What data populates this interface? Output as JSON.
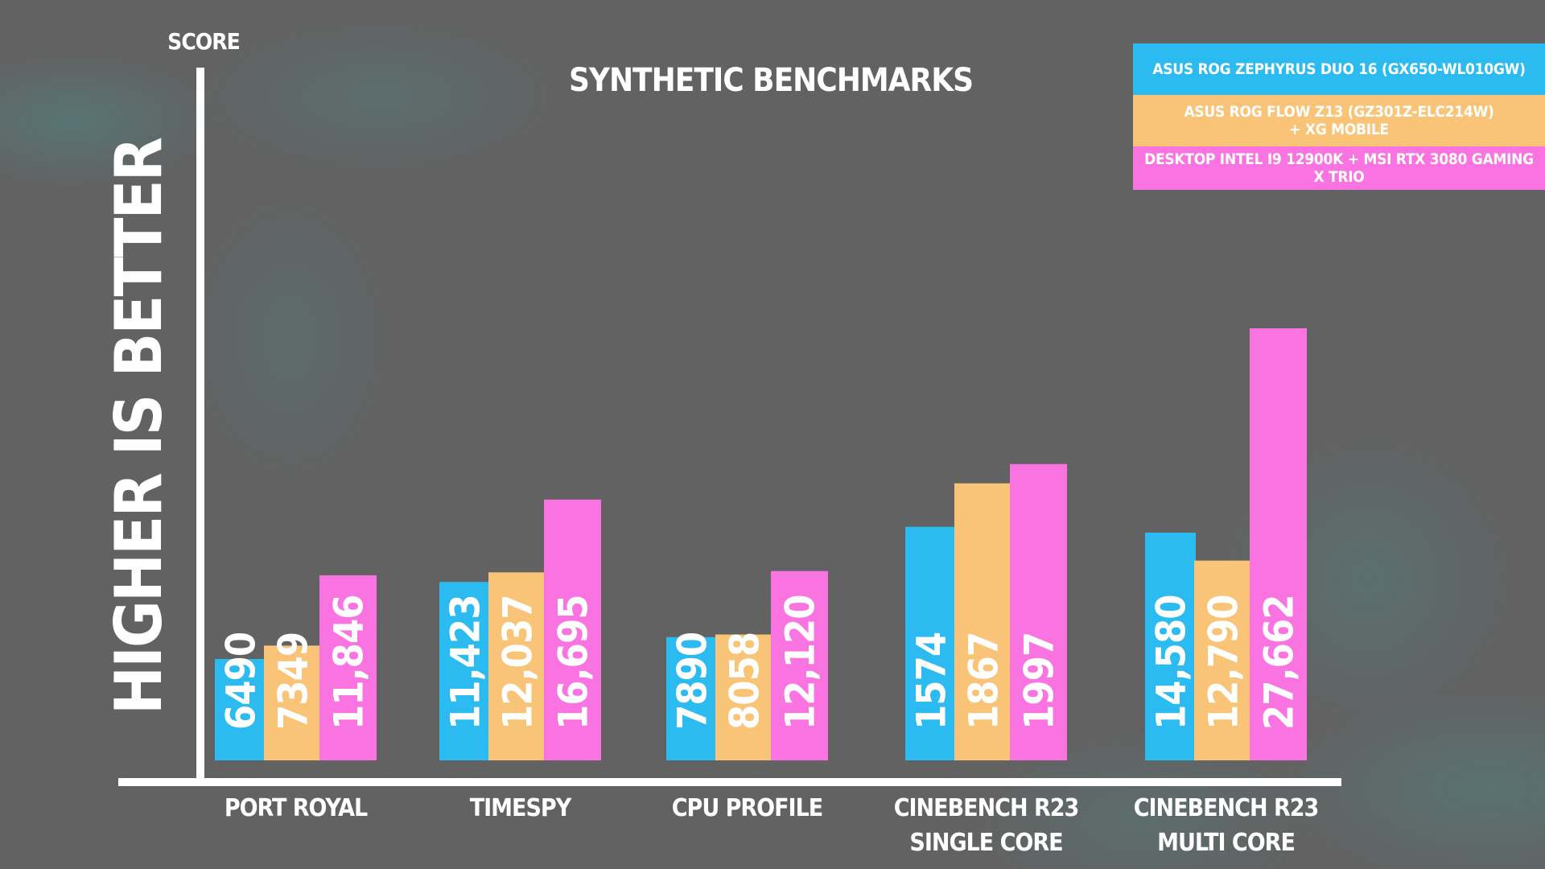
{
  "chart_data": {
    "type": "bar",
    "title": "SYNTHETIC BENCHMARKS",
    "ylabel": "SCORE",
    "side_label": "HIGHER IS BETTER",
    "ylim": [
      0,
      32000
    ],
    "categories": [
      [
        "PORT ROYAL"
      ],
      [
        "TIMESPY"
      ],
      [
        "CPU PROFILE"
      ],
      [
        "CINEBENCH R23",
        "SINGLE CORE"
      ],
      [
        "CINEBENCH R23",
        "MULTI CORE"
      ]
    ],
    "category_scales": [
      1,
      1,
      1,
      9.5,
      1
    ],
    "series": [
      {
        "name": [
          "ASUS ROG ZEPHYRUS DUO 16 (GX650-WL010GW)"
        ],
        "color": "#2cbbf0",
        "values": [
          6490,
          11423,
          7890,
          1574,
          14580
        ],
        "labels": [
          "6490",
          "11,423",
          "7890",
          "1574",
          "14,580"
        ]
      },
      {
        "name": [
          "ASUS ROG FLOW Z13 (GZ301Z-ELC214W)",
          "+ XG MOBILE"
        ],
        "color": "#f9c477",
        "values": [
          7349,
          12037,
          8058,
          1867,
          12790
        ],
        "labels": [
          "7349",
          "12,037",
          "8058",
          "1867",
          "12,790"
        ]
      },
      {
        "name": [
          "DESKTOP INTEL I9 12900K + MSI RTX 3080 GAMING X TRIO"
        ],
        "color": "#f974e1",
        "values": [
          11846,
          16695,
          12120,
          1997,
          27662
        ],
        "labels": [
          "11,846",
          "16,695",
          "12,120",
          "1997",
          "27,662"
        ]
      }
    ],
    "grid": false,
    "legend_position": "top-right"
  }
}
